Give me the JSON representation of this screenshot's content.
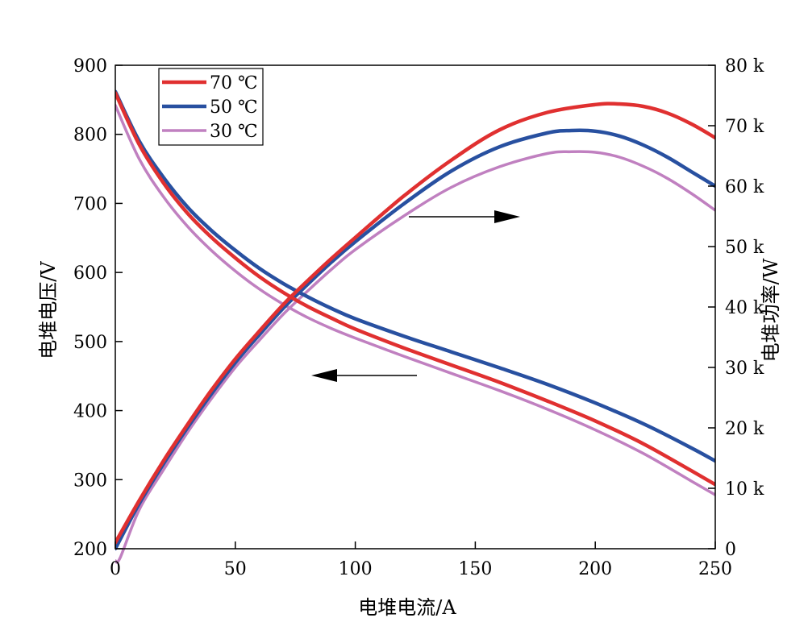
{
  "chart_data": {
    "type": "line",
    "title": "",
    "xlabel": "电堆电流/A",
    "ylabel_left": "电堆电压/V",
    "ylabel_right": "电堆功率/W",
    "xlim": [
      0,
      250
    ],
    "ylim_left": [
      200,
      900
    ],
    "ylim_right": [
      0,
      80000
    ],
    "x_ticks": [
      {
        "value": 0,
        "label": "0"
      },
      {
        "value": 50,
        "label": "50"
      },
      {
        "value": 100,
        "label": "100"
      },
      {
        "value": 150,
        "label": "150"
      },
      {
        "value": 200,
        "label": "200"
      },
      {
        "value": 250,
        "label": "250"
      }
    ],
    "y_left_ticks": [
      {
        "value": 200,
        "label": "200"
      },
      {
        "value": 300,
        "label": "300"
      },
      {
        "value": 400,
        "label": "400"
      },
      {
        "value": 500,
        "label": "500"
      },
      {
        "value": 600,
        "label": "600"
      },
      {
        "value": 700,
        "label": "700"
      },
      {
        "value": 800,
        "label": "800"
      },
      {
        "value": 900,
        "label": "900"
      }
    ],
    "y_right_ticks": [
      {
        "value": 0,
        "label": "0"
      },
      {
        "value": 10000,
        "label": "10 k"
      },
      {
        "value": 20000,
        "label": "20 k"
      },
      {
        "value": 30000,
        "label": "30 k"
      },
      {
        "value": 40000,
        "label": "40 k"
      },
      {
        "value": 50000,
        "label": "50 k"
      },
      {
        "value": 60000,
        "label": "60 k"
      },
      {
        "value": 70000,
        "label": "70 k"
      },
      {
        "value": 80000,
        "label": "80 k"
      }
    ],
    "grid": false,
    "legend_position": "top-left",
    "series": [
      {
        "name": "70 ℃",
        "color": "#e03030",
        "stroke_width": 4.5,
        "voltage": {
          "x": [
            0,
            10,
            20,
            30,
            40,
            50,
            60,
            70,
            80,
            90,
            100,
            120,
            140,
            160,
            180,
            200,
            220,
            240,
            250
          ],
          "y": [
            860,
            785,
            730,
            686,
            651,
            621,
            594,
            571,
            551,
            534,
            518,
            491,
            466,
            441,
            414,
            385,
            352,
            313,
            293
          ]
        },
        "power": {
          "x": [
            0,
            10,
            20,
            30,
            40,
            50,
            60,
            70,
            80,
            90,
            100,
            120,
            140,
            160,
            180,
            200,
            210,
            220,
            230,
            240,
            250
          ],
          "y": [
            1000,
            8000,
            14500,
            20500,
            26200,
            31400,
            36000,
            40400,
            44300,
            48000,
            51500,
            58300,
            64300,
            69300,
            72200,
            73500,
            73600,
            73200,
            72100,
            70300,
            68000
          ]
        }
      },
      {
        "name": "50 ℃",
        "color": "#2850a0",
        "stroke_width": 4.5,
        "voltage": {
          "x": [
            0,
            10,
            20,
            30,
            40,
            50,
            60,
            70,
            80,
            90,
            100,
            120,
            140,
            160,
            180,
            200,
            220,
            240,
            250
          ],
          "y": [
            862,
            790,
            738,
            695,
            661,
            632,
            606,
            584,
            565,
            548,
            533,
            508,
            485,
            462,
            438,
            411,
            381,
            346,
            327
          ]
        },
        "power": {
          "x": [
            0,
            10,
            20,
            30,
            40,
            50,
            60,
            70,
            80,
            90,
            100,
            120,
            140,
            160,
            180,
            190,
            200,
            210,
            220,
            230,
            240,
            250
          ],
          "y": [
            0,
            7500,
            14000,
            20000,
            25600,
            30800,
            35400,
            39800,
            43700,
            47400,
            50800,
            57000,
            62500,
            66500,
            68800,
            69200,
            69100,
            68300,
            66800,
            64800,
            62400,
            60000
          ]
        }
      },
      {
        "name": "30 ℃",
        "color": "#c080c0",
        "stroke_width": 3.5,
        "voltage": {
          "x": [
            0,
            10,
            20,
            30,
            40,
            50,
            60,
            70,
            80,
            90,
            100,
            120,
            140,
            160,
            180,
            200,
            220,
            240,
            250
          ],
          "y": [
            842,
            764,
            710,
            667,
            632,
            602,
            576,
            554,
            535,
            519,
            505,
            479,
            454,
            429,
            402,
            372,
            338,
            298,
            278
          ]
        },
        "power": {
          "x": [
            0,
            2,
            10,
            20,
            30,
            40,
            50,
            60,
            70,
            80,
            90,
            100,
            120,
            140,
            160,
            180,
            190,
            200,
            210,
            220,
            230,
            240,
            250
          ],
          "y": [
            -2000,
            -1500,
            6500,
            13000,
            19200,
            24800,
            30000,
            34500,
            38800,
            42600,
            46200,
            49500,
            55000,
            59800,
            63200,
            65400,
            65700,
            65600,
            64800,
            63300,
            61300,
            58800,
            56000
          ]
        }
      }
    ]
  }
}
